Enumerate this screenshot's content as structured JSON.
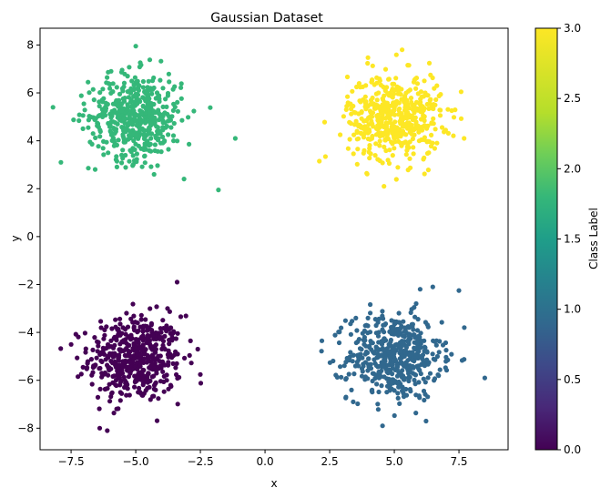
{
  "chart_data": {
    "type": "scatter",
    "title": "Gaussian Dataset",
    "xlabel": "x",
    "ylabel": "y",
    "xlim": [
      -8.7,
      9.4
    ],
    "ylim": [
      -8.9,
      8.7
    ],
    "x_ticks": [
      -7.5,
      -5.0,
      -2.5,
      0.0,
      2.5,
      5.0,
      7.5
    ],
    "x_tick_labels": [
      "−7.5",
      "−5.0",
      "−2.5",
      "0.0",
      "2.5",
      "5.0",
      "7.5"
    ],
    "y_ticks": [
      -8,
      -6,
      -4,
      -2,
      0,
      2,
      4,
      6,
      8
    ],
    "y_tick_labels": [
      "−8",
      "−6",
      "−4",
      "−2",
      "0",
      "2",
      "4",
      "6",
      "8"
    ],
    "grid": false,
    "colormap": "viridis",
    "colorbar": {
      "label": "Class Label",
      "range": [
        0.0,
        3.0
      ],
      "ticks": [
        0.0,
        0.5,
        1.0,
        1.5,
        2.0,
        2.5,
        3.0
      ],
      "tick_labels": [
        "0.0",
        "0.5",
        "1.0",
        "1.5",
        "2.0",
        "2.5",
        "3.0"
      ]
    },
    "clusters": [
      {
        "label": 0,
        "color": "#440154",
        "center": [
          -5.0,
          -5.1
        ],
        "std": 0.9,
        "count": 500
      },
      {
        "label": 1,
        "color": "#31688e",
        "center": [
          5.0,
          -5.0
        ],
        "std": 0.9,
        "count": 500
      },
      {
        "label": 2,
        "color": "#35b779",
        "center": [
          -5.0,
          5.0
        ],
        "std": 0.9,
        "count": 500
      },
      {
        "label": 3,
        "color": "#fde725",
        "center": [
          5.0,
          5.0
        ],
        "std": 0.9,
        "count": 500
      }
    ],
    "outliers": [
      {
        "label": 2,
        "x": -1.8,
        "y": 1.95
      },
      {
        "label": 2,
        "x": -1.15,
        "y": 4.1
      },
      {
        "label": 2,
        "x": -8.2,
        "y": 5.4
      },
      {
        "label": 2,
        "x": -5.0,
        "y": 7.95
      },
      {
        "label": 3,
        "x": 2.1,
        "y": 3.15
      },
      {
        "label": 3,
        "x": 4.6,
        "y": 2.1
      },
      {
        "label": 3,
        "x": 7.7,
        "y": 4.1
      },
      {
        "label": 3,
        "x": 5.3,
        "y": 7.8
      },
      {
        "label": 1,
        "x": 8.5,
        "y": -5.9
      },
      {
        "label": 1,
        "x": 7.5,
        "y": -2.25
      },
      {
        "label": 1,
        "x": 2.2,
        "y": -4.35
      },
      {
        "label": 1,
        "x": 6.0,
        "y": -2.2
      },
      {
        "label": 0,
        "x": -3.4,
        "y": -1.9
      },
      {
        "label": 0,
        "x": -6.1,
        "y": -8.1
      },
      {
        "label": 0,
        "x": -7.5,
        "y": -4.5
      },
      {
        "label": 0,
        "x": -2.6,
        "y": -4.7
      }
    ]
  }
}
